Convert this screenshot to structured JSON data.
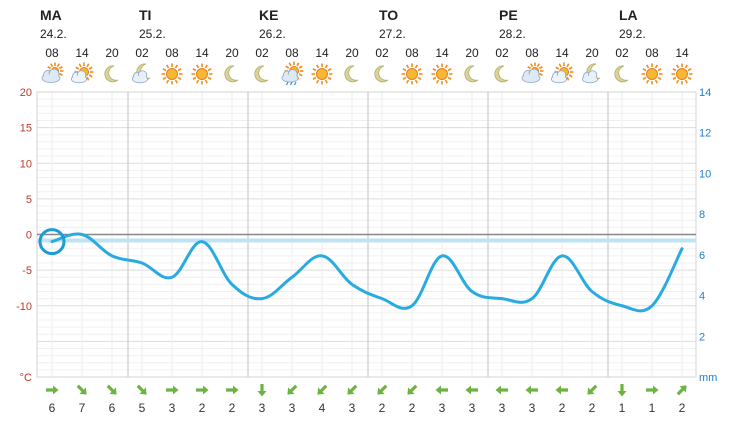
{
  "colors": {
    "temp_axis": "#c0392b",
    "precip_axis": "#1f7fd0",
    "line": "#29abe2",
    "zero_band": "#bfe3f5",
    "grid": "#e6e6e6",
    "day_sep": "#cccccc",
    "wind_arrow": "#6cb33f"
  },
  "days": [
    {
      "name": "MA",
      "date": "24.2."
    },
    {
      "name": "TI",
      "date": "25.2."
    },
    {
      "name": "KE",
      "date": "26.2."
    },
    {
      "name": "TO",
      "date": "27.2."
    },
    {
      "name": "PE",
      "date": "28.2."
    },
    {
      "name": "LA",
      "date": "29.2."
    }
  ],
  "chart_data": {
    "type": "line",
    "x": [
      "08",
      "14",
      "20",
      "02",
      "08",
      "14",
      "20",
      "02",
      "08",
      "14",
      "20",
      "02",
      "08",
      "14",
      "20",
      "02",
      "08",
      "14",
      "20",
      "02",
      "08",
      "14"
    ],
    "weather_icons": [
      "partly-cloudy-icon",
      "sun-cloud-icon",
      "moon-icon",
      "moon-cloud-icon",
      "sun-icon",
      "sun-icon",
      "moon-icon",
      "moon-icon",
      "sun-cloud-rain-icon",
      "sun-icon",
      "moon-icon",
      "moon-icon",
      "sun-icon",
      "sun-icon",
      "moon-icon",
      "moon-icon",
      "partly-cloudy-icon",
      "sun-cloud-icon",
      "moon-cloud-icon",
      "moon-icon",
      "sun-icon",
      "sun-icon"
    ],
    "temperature": [
      -1,
      0,
      -3,
      -4,
      -6,
      -1,
      -7,
      -9,
      -6,
      -3,
      -7,
      -9,
      -10,
      -3,
      -8,
      -9,
      -9,
      -3,
      -8,
      -10,
      -10,
      -2
    ],
    "ylim_temperature": [
      -20,
      20
    ],
    "yticks_temperature": [
      "20",
      "15",
      "10",
      "5",
      "0",
      "-5",
      "-10",
      "°C"
    ],
    "ylim_precipitation": [
      0,
      14
    ],
    "yticks_precipitation": [
      "14",
      "12",
      "10",
      "8",
      "6",
      "4",
      "2",
      "mm"
    ],
    "wind_speed": [
      6,
      7,
      6,
      5,
      3,
      2,
      2,
      3,
      3,
      4,
      3,
      2,
      2,
      3,
      3,
      3,
      3,
      2,
      2,
      1,
      1,
      2
    ],
    "wind_dir": [
      "right",
      "down-right",
      "down-right",
      "down-right",
      "right",
      "right",
      "right",
      "down",
      "down-left",
      "down-left",
      "down-left",
      "down-left",
      "down-left",
      "left",
      "left",
      "left",
      "left",
      "left",
      "down-left",
      "down",
      "right",
      "up-right"
    ]
  }
}
